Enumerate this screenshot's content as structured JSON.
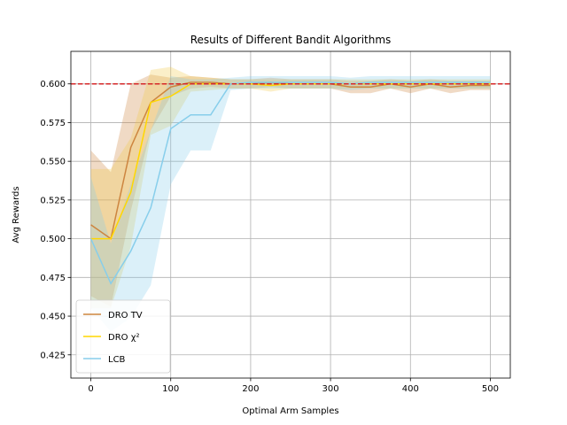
{
  "chart_data": {
    "type": "line",
    "title": "Results of Different Bandit Algorithms",
    "xlabel": "Optimal Arm Samples",
    "ylabel": "Avg Rewards",
    "xlim": [
      -25,
      525
    ],
    "ylim": [
      0.41,
      0.621
    ],
    "xticks": [
      0,
      100,
      200,
      300,
      400,
      500
    ],
    "yticks": [
      0.425,
      0.45,
      0.475,
      0.5,
      0.525,
      0.55,
      0.575,
      0.6
    ],
    "ytick_labels": [
      "0.425",
      "0.450",
      "0.475",
      "0.500",
      "0.525",
      "0.550",
      "0.575",
      "0.600"
    ],
    "grid": true,
    "legend_position": "lower-left",
    "reference_line": {
      "y": 0.6,
      "color": "#d62728",
      "style": "dashed"
    },
    "x": [
      0,
      25,
      50,
      75,
      100,
      125,
      150,
      175,
      200,
      225,
      250,
      275,
      300,
      325,
      350,
      375,
      400,
      425,
      450,
      475,
      500
    ],
    "series": [
      {
        "name": "DRO TV",
        "color": "#cd853f",
        "fill": "#cd853f",
        "values": [
          0.509,
          0.5,
          0.559,
          0.588,
          0.598,
          0.601,
          0.601,
          0.6,
          0.6,
          0.601,
          0.6,
          0.6,
          0.6,
          0.598,
          0.598,
          0.6,
          0.598,
          0.6,
          0.598,
          0.599,
          0.599
        ],
        "upper": [
          0.557,
          0.543,
          0.6,
          0.606,
          0.604,
          0.605,
          0.604,
          0.603,
          0.603,
          0.604,
          0.603,
          0.603,
          0.603,
          0.602,
          0.602,
          0.603,
          0.602,
          0.603,
          0.602,
          0.602,
          0.602
        ],
        "lower": [
          0.463,
          0.456,
          0.518,
          0.57,
          0.592,
          0.597,
          0.598,
          0.597,
          0.597,
          0.598,
          0.597,
          0.597,
          0.597,
          0.594,
          0.594,
          0.597,
          0.594,
          0.597,
          0.594,
          0.596,
          0.596
        ]
      },
      {
        "name": "DRO χ²",
        "color": "#ffd700",
        "fill": "#f2c94c",
        "values": [
          0.5,
          0.5,
          0.53,
          0.588,
          0.592,
          0.6,
          0.6,
          0.6,
          0.6,
          0.599,
          0.6,
          0.6,
          0.6,
          0.6,
          0.6,
          0.6,
          0.6,
          0.6,
          0.6,
          0.6,
          0.6
        ],
        "upper": [
          0.545,
          0.545,
          0.565,
          0.609,
          0.611,
          0.605,
          0.604,
          0.603,
          0.603,
          0.603,
          0.603,
          0.603,
          0.603,
          0.603,
          0.603,
          0.603,
          0.603,
          0.603,
          0.603,
          0.603,
          0.603
        ],
        "lower": [
          0.455,
          0.455,
          0.495,
          0.567,
          0.573,
          0.595,
          0.596,
          0.597,
          0.597,
          0.595,
          0.597,
          0.597,
          0.597,
          0.597,
          0.597,
          0.597,
          0.597,
          0.597,
          0.597,
          0.597,
          0.597
        ]
      },
      {
        "name": "LCB",
        "color": "#87ceeb",
        "fill": "#87ceeb",
        "values": [
          0.5,
          0.471,
          0.492,
          0.52,
          0.571,
          0.58,
          0.58,
          0.6,
          0.601,
          0.601,
          0.601,
          0.601,
          0.601,
          0.6,
          0.601,
          0.601,
          0.601,
          0.601,
          0.601,
          0.601,
          0.601
        ],
        "upper": [
          0.54,
          0.497,
          0.535,
          0.57,
          0.605,
          0.603,
          0.603,
          0.604,
          0.605,
          0.605,
          0.605,
          0.605,
          0.605,
          0.604,
          0.605,
          0.605,
          0.605,
          0.605,
          0.605,
          0.605,
          0.605
        ],
        "lower": [
          0.455,
          0.44,
          0.449,
          0.47,
          0.535,
          0.557,
          0.557,
          0.596,
          0.597,
          0.597,
          0.597,
          0.597,
          0.597,
          0.596,
          0.597,
          0.597,
          0.597,
          0.597,
          0.597,
          0.597,
          0.597
        ]
      }
    ]
  }
}
